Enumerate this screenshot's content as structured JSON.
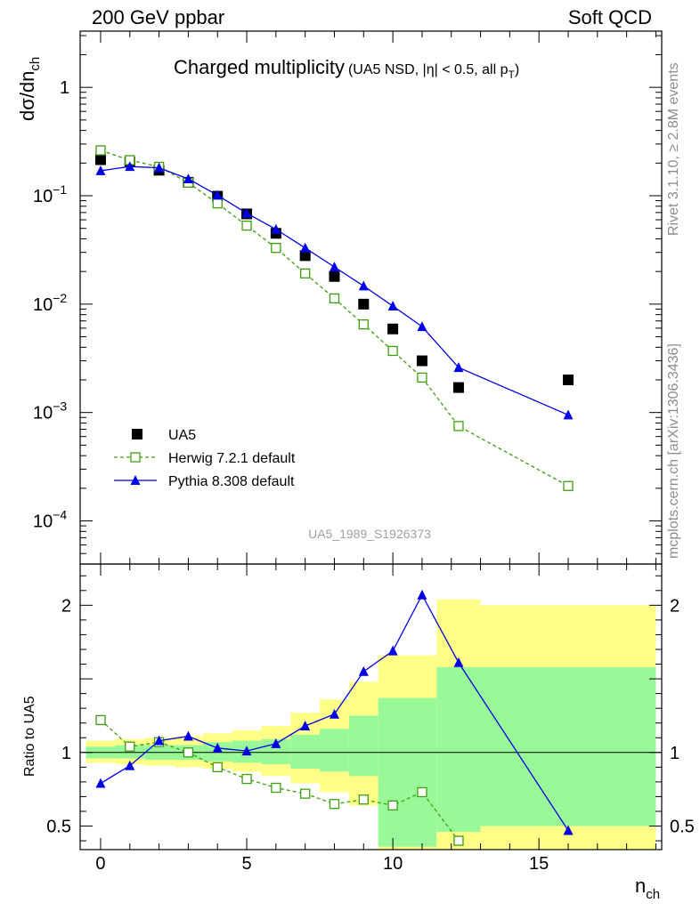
{
  "header": {
    "left": "200 GeV ppbar",
    "right": "Soft QCD"
  },
  "side_labels": {
    "rivet": "Rivet 3.1.10, ≥ 2.8M events",
    "mcplots": "mcplots.cern.ch [arXiv:1306.3436]"
  },
  "chart_data": [
    {
      "type": "scatter",
      "title": "Charged multiplicity",
      "subtitle": "(UA5 NSD, |η| < 0.5, all p",
      "subtitle_sub": "T",
      "subtitle_close": ")",
      "ylabel": "dσ/dn",
      "ylabel_sub": "ch",
      "yscale": "log",
      "xlim": [
        -0.7,
        19.2
      ],
      "ylim": [
        4e-05,
        3.3
      ],
      "yticks": [
        {
          "value": 1,
          "label": "1"
        },
        {
          "value": 0.1,
          "label": "10",
          "sup": "−1"
        },
        {
          "value": 0.01,
          "label": "10",
          "sup": "−2"
        },
        {
          "value": 0.001,
          "label": "10",
          "sup": "−3"
        },
        {
          "value": 0.0001,
          "label": "10",
          "sup": "−4"
        }
      ],
      "analysis_label": "UA5_1989_S1926373",
      "legend_position": "bottom-left",
      "series": [
        {
          "name": "UA5",
          "style": "square-marker",
          "color": "#000000",
          "x": [
            0,
            1,
            2,
            3,
            4,
            5,
            6,
            7,
            8,
            9,
            10,
            11,
            12.25,
            16
          ],
          "y": [
            0.215,
            0.205,
            0.172,
            0.133,
            0.099,
            0.068,
            0.045,
            0.028,
            0.018,
            0.01,
            0.0059,
            0.003,
            0.0017,
            0.002
          ]
        },
        {
          "name": "Herwig 7.2.1 default",
          "style": "dashed-open-square",
          "color": "#3d9e0f",
          "x": [
            0,
            1,
            2,
            3,
            4,
            5,
            6,
            7,
            8,
            9,
            10,
            11,
            12.25,
            16
          ],
          "y": [
            0.262,
            0.213,
            0.185,
            0.132,
            0.085,
            0.053,
            0.033,
            0.0192,
            0.0113,
            0.0065,
            0.0037,
            0.0021,
            0.00075,
            0.00021
          ]
        },
        {
          "name": "Pythia 8.308 default",
          "style": "solid-triangle",
          "color": "#0000e6",
          "x": [
            0,
            1,
            2,
            3,
            4,
            5,
            6,
            7,
            8,
            9,
            10,
            11,
            12.25,
            16
          ],
          "y": [
            0.17,
            0.186,
            0.181,
            0.143,
            0.101,
            0.069,
            0.049,
            0.033,
            0.022,
            0.0147,
            0.0096,
            0.0062,
            0.0026,
            0.00095
          ]
        }
      ]
    },
    {
      "type": "line",
      "ylabel": "Ratio to UA5",
      "xlabel": "n",
      "xlabel_sub": "ch",
      "xlim": [
        -0.7,
        19.2
      ],
      "ylim": [
        0.34,
        2.28
      ],
      "xticks": [
        0,
        5,
        10,
        15
      ],
      "yticks": [
        0.5,
        1,
        2
      ],
      "reference_line": 1,
      "uncertainty_bands": {
        "edges": [
          -0.5,
          0.5,
          1.5,
          2.5,
          3.5,
          4.5,
          5.5,
          6.5,
          7.5,
          8.5,
          9.5,
          10.5,
          11.5,
          13,
          19
        ],
        "stat_color": "#99f999",
        "total_color": "#ffff88",
        "stat_low": [
          0.96,
          0.96,
          0.95,
          0.95,
          0.94,
          0.93,
          0.92,
          0.89,
          0.87,
          0.84,
          0.36,
          0.36,
          0.46,
          0.5
        ],
        "stat_high": [
          1.04,
          1.05,
          1.05,
          1.05,
          1.07,
          1.08,
          1.09,
          1.12,
          1.16,
          1.25,
          1.37,
          1.37,
          1.58,
          1.58
        ],
        "total_low": [
          0.93,
          0.92,
          0.91,
          0.9,
          0.89,
          0.87,
          0.84,
          0.79,
          0.73,
          0.64,
          0.34,
          0.34,
          0.34,
          0.34
        ],
        "total_high": [
          1.08,
          1.09,
          1.1,
          1.11,
          1.13,
          1.15,
          1.18,
          1.27,
          1.36,
          1.48,
          1.66,
          1.66,
          2.04,
          2.0
        ]
      },
      "series": [
        {
          "name": "Herwig 7.2.1 default",
          "style": "dashed-open-square",
          "color": "#3d9e0f",
          "x": [
            0,
            1,
            2,
            3,
            4,
            5,
            6,
            7,
            8,
            9,
            10,
            11,
            12.25
          ],
          "y": [
            1.22,
            1.04,
            1.07,
            1.0,
            0.9,
            0.82,
            0.76,
            0.72,
            0.65,
            0.68,
            0.64,
            0.73,
            0.4
          ]
        },
        {
          "name": "Pythia 8.308 default",
          "style": "solid-triangle",
          "color": "#0000e6",
          "x": [
            0,
            1,
            2,
            3,
            4,
            5,
            6,
            7,
            8,
            9,
            10,
            11,
            12.25,
            16
          ],
          "y": [
            0.79,
            0.91,
            1.08,
            1.11,
            1.03,
            1.01,
            1.06,
            1.18,
            1.26,
            1.55,
            1.69,
            2.07,
            1.61,
            0.47
          ]
        }
      ]
    }
  ]
}
